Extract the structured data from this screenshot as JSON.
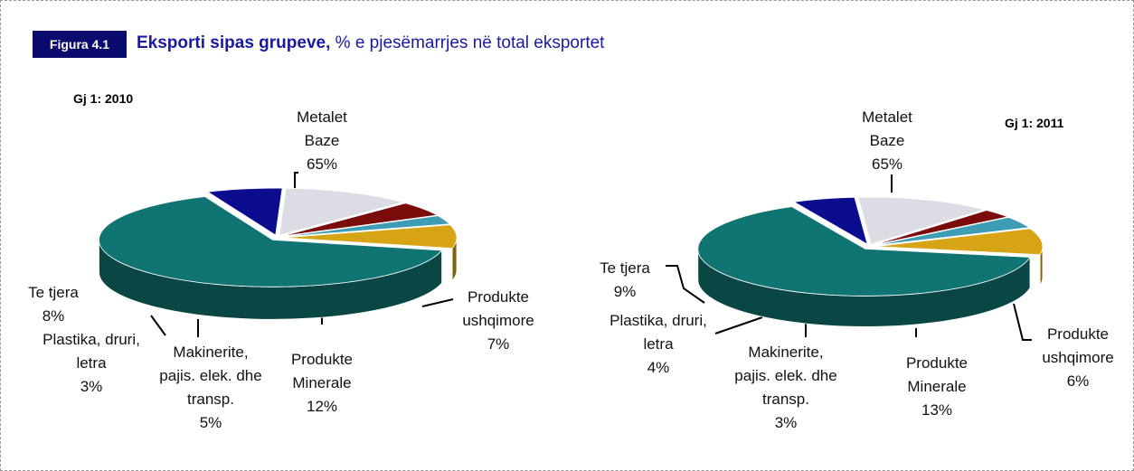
{
  "header": {
    "figure_label": "Figura 4.1",
    "title_bold": "Eksporti sipas grupeve,",
    "title_rest": "% e pjesëmarrjes në total eksportet"
  },
  "chart_data": [
    {
      "type": "pie",
      "title": "Gj 1: 2010",
      "categories": [
        "Metalet Baze",
        "Produkte ushqimore",
        "Produkte Minerale",
        "Makinerite, pajis. elek. dhe transp.",
        "Plastika, druri, letra",
        "Te tjera"
      ],
      "values": [
        65,
        7,
        12,
        5,
        3,
        8
      ],
      "value_labels": [
        "65%",
        "7%",
        "12%",
        "5%",
        "3%",
        "8%"
      ],
      "colors": [
        "#0f7472",
        "#0c0c8e",
        "#dcdce4",
        "#7a0c0c",
        "#3e9cb4",
        "#d6a414"
      ]
    },
    {
      "type": "pie",
      "title": "Gj 1: 2011",
      "categories": [
        "Metalet Baze",
        "Produkte ushqimore",
        "Produkte Minerale",
        "Makinerite, pajis. elek. dhe transp.",
        "Plastika, druri, letra",
        "Te tjera"
      ],
      "values": [
        65,
        6,
        13,
        3,
        4,
        9
      ],
      "value_labels": [
        "65%",
        "6%",
        "13%",
        "3%",
        "4%",
        "9%"
      ],
      "colors": [
        "#0f7472",
        "#0c0c8e",
        "#dcdce4",
        "#7a0c0c",
        "#3e9cb4",
        "#d6a414"
      ]
    }
  ]
}
